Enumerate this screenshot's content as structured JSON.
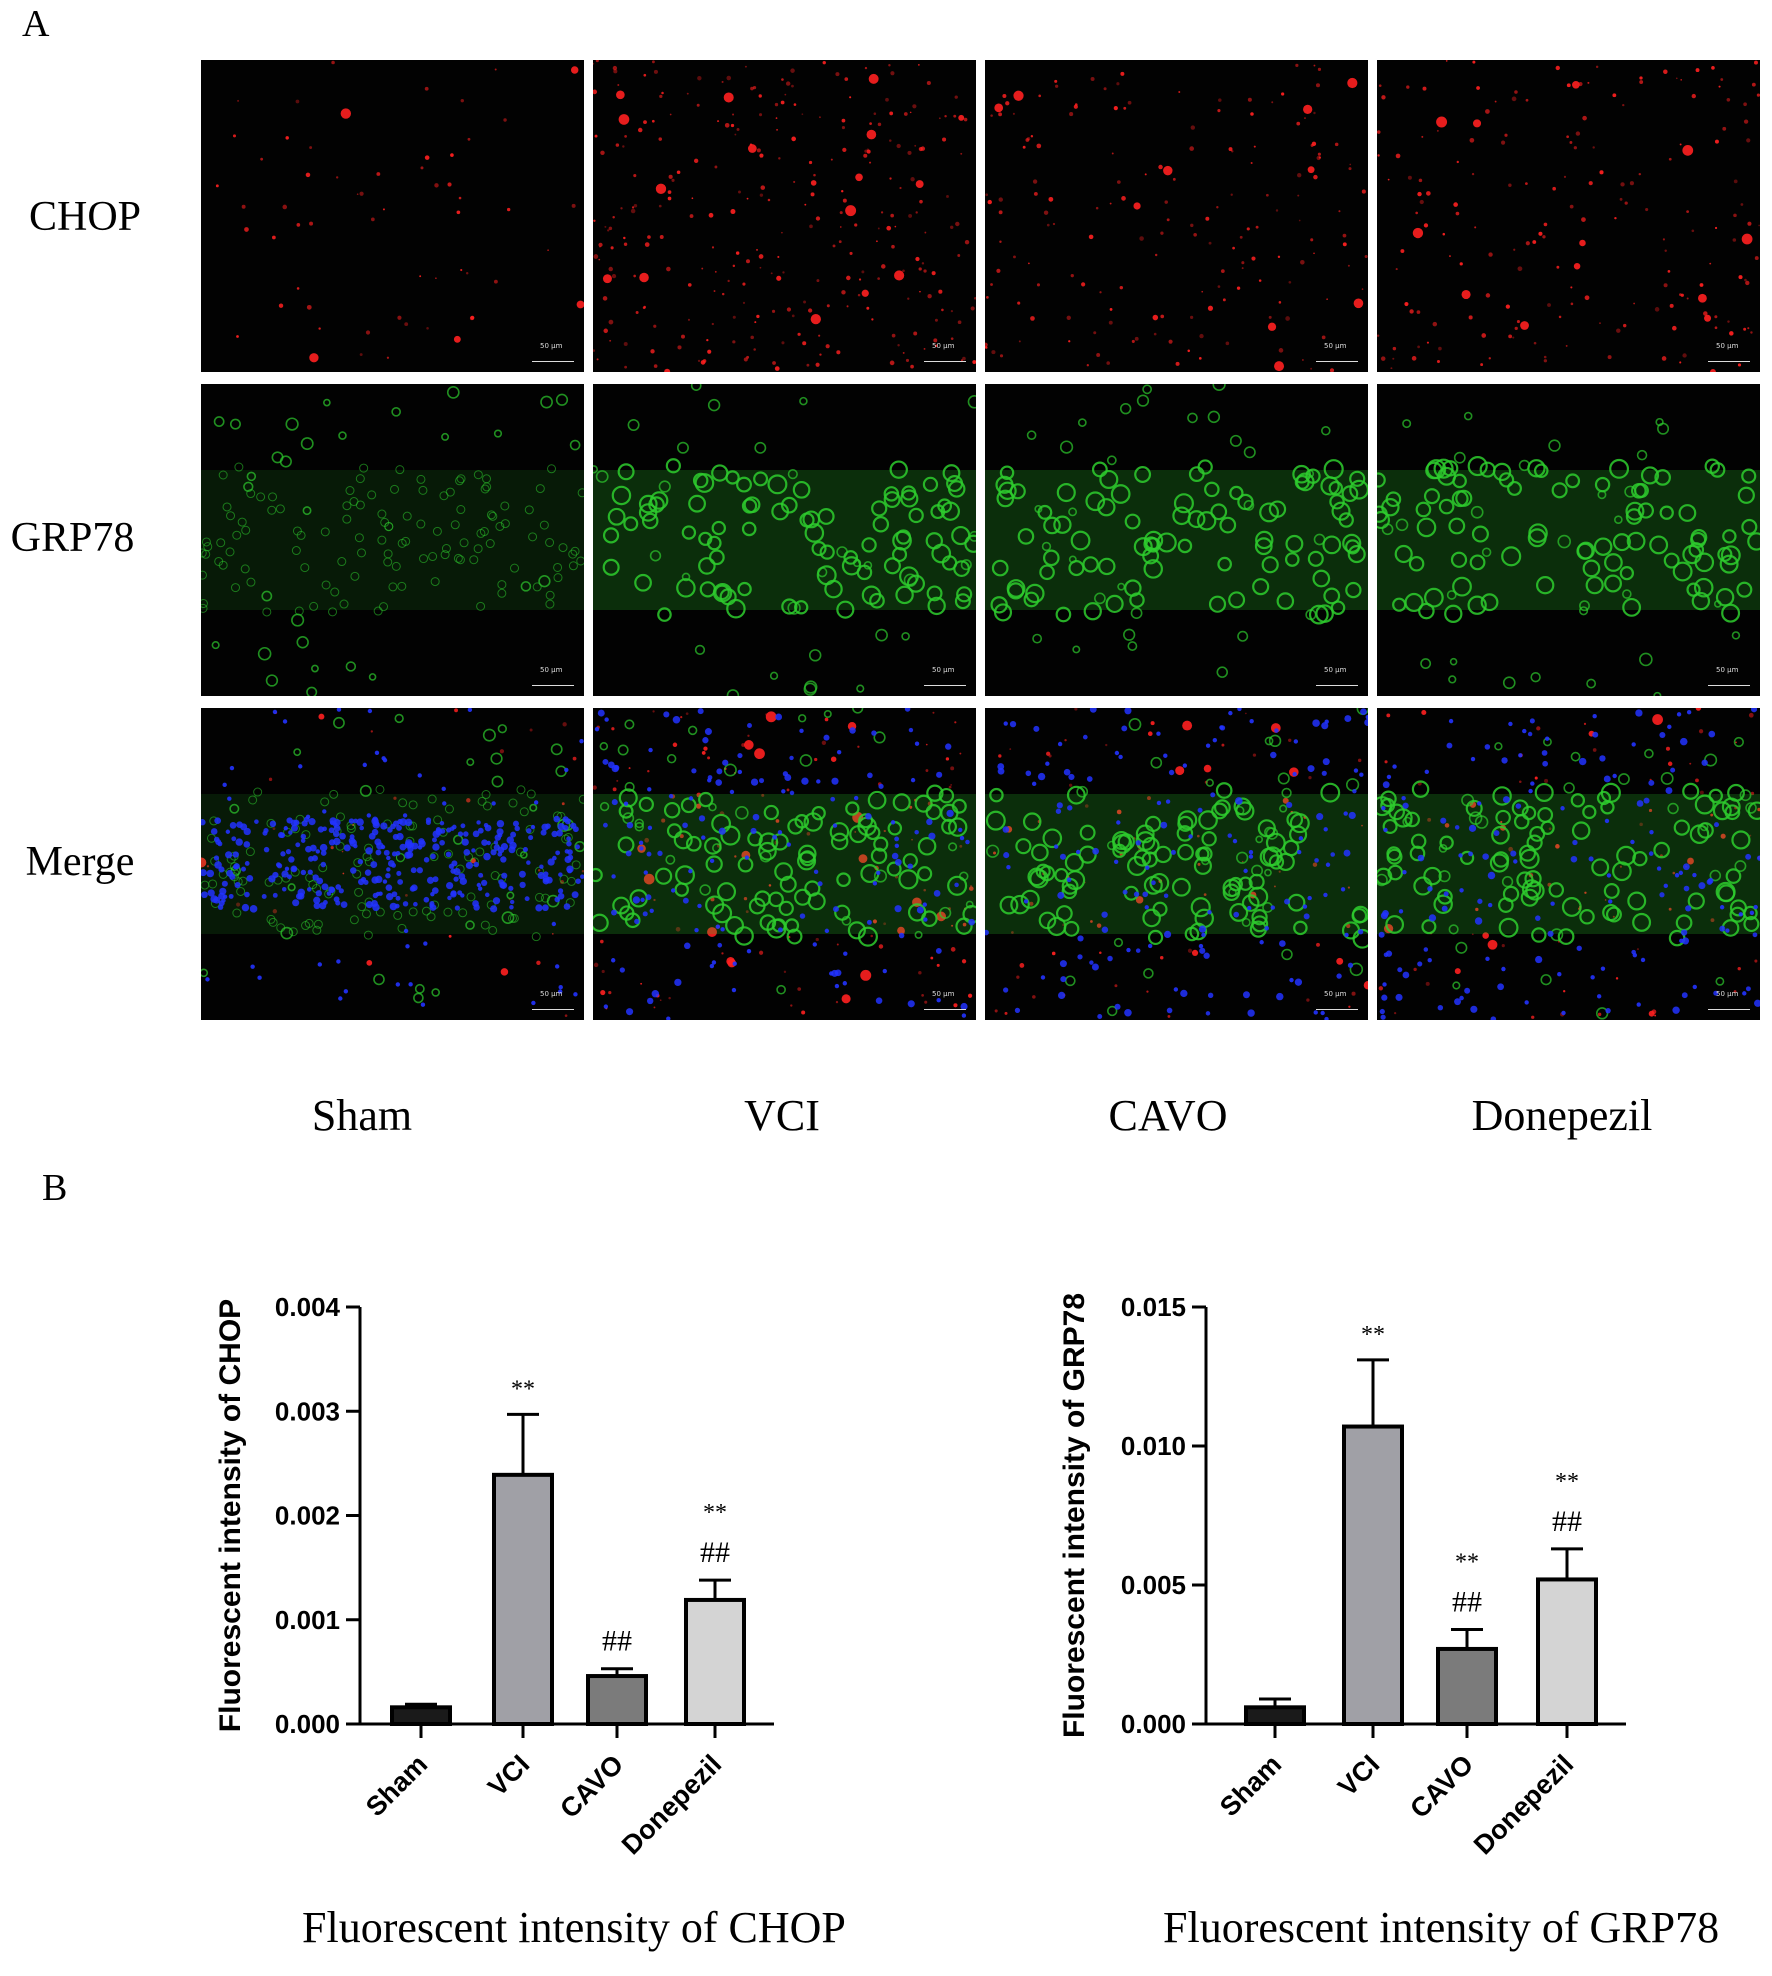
{
  "panel_a_label": "A",
  "panel_b_label": "B",
  "row_labels": [
    "CHOP",
    "GRP78",
    "Merge"
  ],
  "column_labels": [
    "Sham",
    "VCI",
    "CAVO",
    "Donepezil"
  ],
  "scale_bar_text": "50 μm",
  "channel_colors": {
    "CHOP": "#ff2020",
    "GRP78": "#2ecc2e",
    "DAPI": "#2233ff"
  },
  "chart_data": [
    {
      "type": "bar",
      "title": "",
      "caption": "Fluorescent intensity of CHOP",
      "ylabel": "Fluorescent intensity of CHOP",
      "xlabel": "",
      "categories": [
        "Sham",
        "VCI",
        "CAVO",
        "Donepezil"
      ],
      "values": [
        0.00016,
        0.00239,
        0.00046,
        0.00119
      ],
      "errors": [
        3e-05,
        0.00058,
        7e-05,
        0.00019
      ],
      "yticks": [
        "0.000",
        "0.001",
        "0.002",
        "0.003",
        "0.004"
      ],
      "ylim": [
        0,
        0.004
      ],
      "annotations": [
        [],
        [
          "**"
        ],
        [
          "##"
        ],
        [
          "##",
          "**"
        ]
      ],
      "bar_colors": [
        "#1a1a1a",
        "#a0a0a6",
        "#7b7b7b",
        "#d4d4d4"
      ],
      "grid": false
    },
    {
      "type": "bar",
      "title": "",
      "caption": "Fluorescent intensity of GRP78",
      "ylabel": "Fluorescent intensity of GRP78",
      "xlabel": "",
      "categories": [
        "Sham",
        "VCI",
        "CAVO",
        "Donepezil"
      ],
      "values": [
        0.0006,
        0.0107,
        0.0027,
        0.0052
      ],
      "errors": [
        0.0003,
        0.0024,
        0.0007,
        0.0011
      ],
      "yticks": [
        "0.000",
        "0.005",
        "0.010",
        "0.015"
      ],
      "ylim": [
        0,
        0.015
      ],
      "annotations": [
        [],
        [
          "**"
        ],
        [
          "##",
          "**"
        ],
        [
          "##",
          "**"
        ]
      ],
      "bar_colors": [
        "#1a1a1a",
        "#a0a0a6",
        "#7b7b7b",
        "#d4d4d4"
      ],
      "grid": false
    }
  ]
}
